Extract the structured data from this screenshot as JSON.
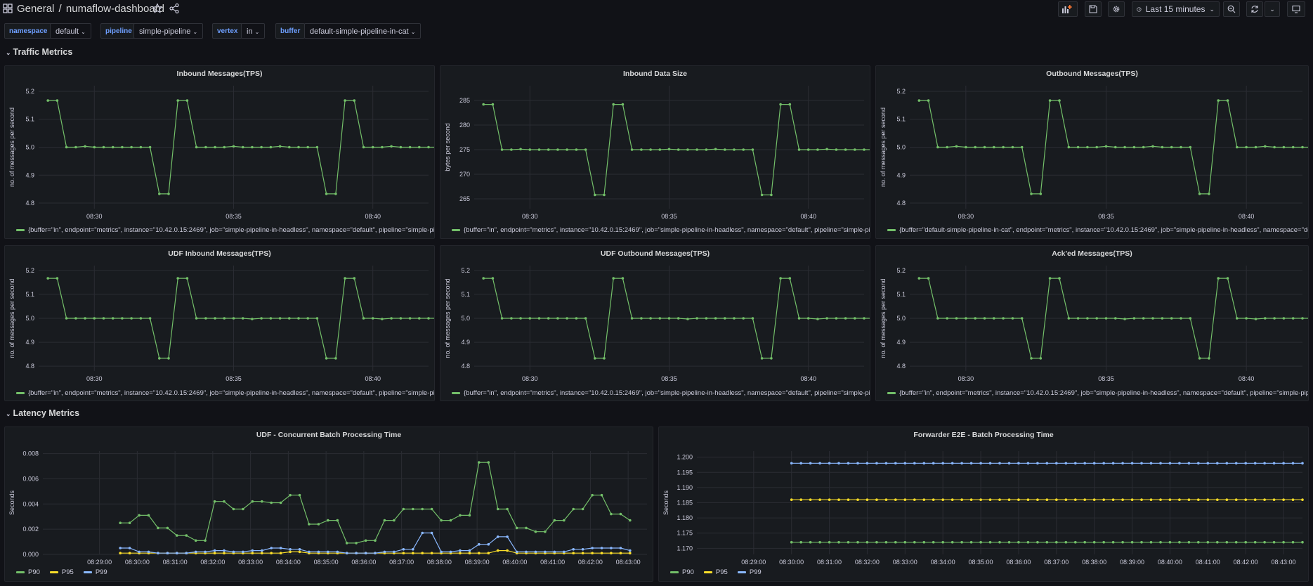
{
  "header": {
    "folder": "General",
    "separator": "/",
    "dashboard_title": "numaflow-dashboard",
    "time_range": "Last 15 minutes"
  },
  "variables": [
    {
      "label": "namespace",
      "value": "default"
    },
    {
      "label": "pipeline",
      "value": "simple-pipeline"
    },
    {
      "label": "vertex",
      "value": "in"
    },
    {
      "label": "buffer",
      "value": "default-simple-pipeline-in-cat"
    }
  ],
  "rows": {
    "traffic": "Traffic Metrics",
    "latency": "Latency Metrics"
  },
  "colors": {
    "green": "#73bf69",
    "yellow": "#fade2a",
    "blue": "#8ab8ff",
    "background": "#111217",
    "panel": "#181b1f",
    "variable_label": "#6e9fff"
  },
  "chart_data": [
    {
      "type": "line",
      "title": "Inbound Messages(TPS)",
      "ylabel": "no. of messages per second",
      "ylim": [
        4.78,
        5.22
      ],
      "yticks": [
        "4.8",
        "4.9",
        "5.0",
        "5.1",
        "5.2"
      ],
      "xlim": [
        0,
        42
      ],
      "xticks": [
        {
          "x": 6,
          "label": "08:30"
        },
        {
          "x": 21,
          "label": "08:35"
        },
        {
          "x": 36,
          "label": "08:40"
        }
      ],
      "series": [
        {
          "name": "{buffer=\"in\", endpoint=\"metrics\", instance=\"10.42.0.15:2469\", job=\"simple-pipeline-in-headless\", namespace=\"default\", pipeline=\"simple-pipeline\"}",
          "color": "green",
          "values": [
            5.167,
            5.167,
            5.0,
            5.0,
            5.003,
            5.0,
            5.0,
            5.0,
            5.0,
            5.0,
            5.0,
            5.0,
            4.833,
            4.833,
            5.167,
            5.167,
            5.0,
            5.0,
            5.0,
            5.0,
            5.003,
            5.0,
            5.0,
            5.0,
            5.0,
            5.003,
            5.0,
            5.0,
            5.0,
            5.0,
            4.833,
            4.833,
            5.167,
            5.167,
            5.0,
            5.0,
            5.0,
            5.003,
            5.0,
            5.0,
            5.0,
            5.0,
            5.0
          ]
        }
      ]
    },
    {
      "type": "line",
      "title": "Inbound Data Size",
      "ylabel": "bytes per second",
      "ylim": [
        263,
        288
      ],
      "yticks": [
        "265",
        "270",
        "275",
        "280",
        "285"
      ],
      "xlim": [
        0,
        42
      ],
      "xticks": [
        {
          "x": 6,
          "label": "08:30"
        },
        {
          "x": 21,
          "label": "08:35"
        },
        {
          "x": 36,
          "label": "08:40"
        }
      ],
      "series": [
        {
          "name": "{buffer=\"in\", endpoint=\"metrics\", instance=\"10.42.0.15:2469\", job=\"simple-pipeline-in-headless\", namespace=\"default\", pipeline=\"simple-pipeline\"}",
          "color": "green",
          "values": [
            284.2,
            284.2,
            275.0,
            275.0,
            275.1,
            275.0,
            275.0,
            275.0,
            275.0,
            275.0,
            275.0,
            275.0,
            265.8,
            265.8,
            284.2,
            284.2,
            275.0,
            275.0,
            275.0,
            275.0,
            275.1,
            275.0,
            275.0,
            275.0,
            275.0,
            275.1,
            275.0,
            275.0,
            275.0,
            275.0,
            265.8,
            265.8,
            284.2,
            284.2,
            275.0,
            275.0,
            275.0,
            275.1,
            275.0,
            275.0,
            275.0,
            275.0,
            275.0
          ]
        }
      ]
    },
    {
      "type": "line",
      "title": "Outbound Messages(TPS)",
      "ylabel": "no. of messages per second",
      "ylim": [
        4.78,
        5.22
      ],
      "yticks": [
        "4.8",
        "4.9",
        "5.0",
        "5.1",
        "5.2"
      ],
      "xlim": [
        0,
        42
      ],
      "xticks": [
        {
          "x": 6,
          "label": "08:30"
        },
        {
          "x": 21,
          "label": "08:35"
        },
        {
          "x": 36,
          "label": "08:40"
        }
      ],
      "series": [
        {
          "name": "{buffer=\"default-simple-pipeline-in-cat\", endpoint=\"metrics\", instance=\"10.42.0.15:2469\", job=\"simple-pipeline-in-headless\", namespace=\"default\", pipeline=\"simple-pipeline\"}",
          "color": "green",
          "values": [
            5.167,
            5.167,
            5.0,
            5.0,
            5.003,
            5.0,
            5.0,
            5.0,
            5.0,
            5.0,
            5.0,
            5.0,
            4.833,
            4.833,
            5.167,
            5.167,
            5.0,
            5.0,
            5.0,
            5.0,
            5.003,
            5.0,
            5.0,
            5.0,
            5.0,
            5.003,
            5.0,
            5.0,
            5.0,
            5.0,
            4.833,
            4.833,
            5.167,
            5.167,
            5.0,
            5.0,
            5.0,
            5.003,
            5.0,
            5.0,
            5.0,
            5.0,
            5.0
          ]
        }
      ]
    },
    {
      "type": "line",
      "title": "UDF Inbound Messages(TPS)",
      "ylabel": "no. of messages per second",
      "ylim": [
        4.78,
        5.22
      ],
      "yticks": [
        "4.8",
        "4.9",
        "5.0",
        "5.1",
        "5.2"
      ],
      "xlim": [
        0,
        42
      ],
      "xticks": [
        {
          "x": 6,
          "label": "08:30"
        },
        {
          "x": 21,
          "label": "08:35"
        },
        {
          "x": 36,
          "label": "08:40"
        }
      ],
      "series": [
        {
          "name": "{buffer=\"in\", endpoint=\"metrics\", instance=\"10.42.0.15:2469\", job=\"simple-pipeline-in-headless\", namespace=\"default\", pipeline=\"simple-pipeline\"}",
          "color": "green",
          "values": [
            5.167,
            5.167,
            5.0,
            5.0,
            5.0,
            5.0,
            5.0,
            5.0,
            5.0,
            5.0,
            5.0,
            5.0,
            4.833,
            4.833,
            5.167,
            5.167,
            5.0,
            5.0,
            5.0,
            5.0,
            5.0,
            5.0,
            4.997,
            5.0,
            5.0,
            5.0,
            5.0,
            5.0,
            5.0,
            5.0,
            4.833,
            4.833,
            5.167,
            5.167,
            5.0,
            5.0,
            4.997,
            5.0,
            5.0,
            5.0,
            5.0,
            5.0,
            5.0
          ]
        }
      ]
    },
    {
      "type": "line",
      "title": "UDF Outbound Messages(TPS)",
      "ylabel": "no. of messages per second",
      "ylim": [
        4.78,
        5.22
      ],
      "yticks": [
        "4.8",
        "4.9",
        "5.0",
        "5.1",
        "5.2"
      ],
      "xlim": [
        0,
        42
      ],
      "xticks": [
        {
          "x": 6,
          "label": "08:30"
        },
        {
          "x": 21,
          "label": "08:35"
        },
        {
          "x": 36,
          "label": "08:40"
        }
      ],
      "series": [
        {
          "name": "{buffer=\"in\", endpoint=\"metrics\", instance=\"10.42.0.15:2469\", job=\"simple-pipeline-in-headless\", namespace=\"default\", pipeline=\"simple-pipeline\"}",
          "color": "green",
          "values": [
            5.167,
            5.167,
            5.0,
            5.0,
            5.0,
            5.0,
            5.0,
            5.0,
            5.0,
            5.0,
            5.0,
            5.0,
            4.833,
            4.833,
            5.167,
            5.167,
            5.0,
            5.0,
            5.0,
            5.0,
            5.0,
            5.0,
            4.997,
            5.0,
            5.0,
            5.0,
            5.0,
            5.0,
            5.0,
            5.0,
            4.833,
            4.833,
            5.167,
            5.167,
            5.0,
            5.0,
            4.997,
            5.0,
            5.0,
            5.0,
            5.0,
            5.0,
            5.0
          ]
        }
      ]
    },
    {
      "type": "line",
      "title": "Ack'ed Messages(TPS)",
      "ylabel": "no. of messages per second",
      "ylim": [
        4.78,
        5.22
      ],
      "yticks": [
        "4.8",
        "4.9",
        "5.0",
        "5.1",
        "5.2"
      ],
      "xlim": [
        0,
        42
      ],
      "xticks": [
        {
          "x": 6,
          "label": "08:30"
        },
        {
          "x": 21,
          "label": "08:35"
        },
        {
          "x": 36,
          "label": "08:40"
        }
      ],
      "series": [
        {
          "name": "{buffer=\"in\", endpoint=\"metrics\", instance=\"10.42.0.15:2469\", job=\"simple-pipeline-in-headless\", namespace=\"default\", pipeline=\"simple-pipeline\"}",
          "color": "green",
          "values": [
            5.167,
            5.167,
            5.0,
            5.0,
            5.0,
            5.0,
            5.0,
            5.0,
            5.0,
            5.0,
            5.0,
            5.0,
            4.833,
            4.833,
            5.167,
            5.167,
            5.0,
            5.0,
            5.0,
            5.0,
            5.0,
            5.0,
            4.997,
            5.0,
            5.0,
            5.0,
            5.0,
            5.0,
            5.0,
            5.0,
            4.833,
            4.833,
            5.167,
            5.167,
            5.0,
            5.0,
            4.997,
            5.0,
            5.0,
            5.0,
            5.0,
            5.0,
            5.0
          ]
        }
      ]
    },
    {
      "type": "line",
      "title": "UDF - Concurrent Batch Processing Time",
      "ylabel": "Seconds",
      "ylim": [
        0,
        0.0082
      ],
      "yticks": [
        "0.000",
        "0.002",
        "0.004",
        "0.006",
        "0.008"
      ],
      "xlim": [
        -1.5,
        14.5
      ],
      "xticks": [
        {
          "x": 0,
          "label": "08:29:00"
        },
        {
          "x": 1,
          "label": "08:30:00"
        },
        {
          "x": 2,
          "label": "08:31:00"
        },
        {
          "x": 3,
          "label": "08:32:00"
        },
        {
          "x": 4,
          "label": "08:33:00"
        },
        {
          "x": 5,
          "label": "08:34:00"
        },
        {
          "x": 6,
          "label": "08:35:00"
        },
        {
          "x": 7,
          "label": "08:36:00"
        },
        {
          "x": 8,
          "label": "08:37:00"
        },
        {
          "x": 9,
          "label": "08:38:00"
        },
        {
          "x": 10,
          "label": "08:39:00"
        },
        {
          "x": 11,
          "label": "08:40:00"
        },
        {
          "x": 12,
          "label": "08:41:00"
        },
        {
          "x": 13,
          "label": "08:42:00"
        },
        {
          "x": 14,
          "label": "08:43:00"
        }
      ],
      "x_start": 0.55,
      "x_step": 0.25,
      "series": [
        {
          "name": "P90",
          "color": "green",
          "values": [
            0.0025,
            0.0025,
            0.0031,
            0.0031,
            0.0021,
            0.0021,
            0.0015,
            0.0015,
            0.0011,
            0.0011,
            0.0042,
            0.0042,
            0.0036,
            0.0036,
            0.0042,
            0.0042,
            0.0041,
            0.0041,
            0.0047,
            0.0047,
            0.0024,
            0.0024,
            0.0027,
            0.0027,
            0.0009,
            0.0009,
            0.0011,
            0.0011,
            0.0027,
            0.0027,
            0.0036,
            0.0036,
            0.0036,
            0.0036,
            0.0027,
            0.0027,
            0.0031,
            0.0031,
            0.0073,
            0.0073,
            0.0036,
            0.0036,
            0.0021,
            0.0021,
            0.0018,
            0.0018,
            0.0027,
            0.0027,
            0.0036,
            0.0036,
            0.0047,
            0.0047,
            0.0032,
            0.0032,
            0.0027
          ]
        },
        {
          "name": "P95",
          "color": "yellow",
          "values": [
            0.0001,
            0.0001,
            0.0001,
            0.0001,
            0.0001,
            0.0001,
            0.0001,
            0.0001,
            0.0001,
            0.0001,
            0.0001,
            0.0001,
            0.0001,
            0.0001,
            0.0001,
            0.0001,
            0.0001,
            0.0001,
            0.0002,
            0.0002,
            0.0001,
            0.0001,
            0.0001,
            0.0001,
            0.0001,
            0.0001,
            0.0001,
            0.0001,
            0.0001,
            0.0001,
            0.0001,
            0.0001,
            0.0001,
            0.0001,
            0.0001,
            0.0001,
            0.0001,
            0.0001,
            0.0001,
            0.0001,
            0.0003,
            0.0003,
            0.0001,
            0.0001,
            0.0001,
            0.0001,
            0.0001,
            0.0001,
            0.0001,
            0.0001,
            0.0001,
            0.0001,
            0.0001,
            0.0001,
            0.0001
          ]
        },
        {
          "name": "P99",
          "color": "blue",
          "values": [
            0.0005,
            0.0005,
            0.0002,
            0.0002,
            0.0001,
            0.0001,
            0.0001,
            0.0001,
            0.0002,
            0.0002,
            0.0003,
            0.0003,
            0.0002,
            0.0002,
            0.0003,
            0.0003,
            0.0005,
            0.0005,
            0.0004,
            0.0004,
            0.0002,
            0.0002,
            0.0002,
            0.0002,
            0.0001,
            0.0001,
            0.0001,
            0.0001,
            0.0002,
            0.0002,
            0.0004,
            0.0004,
            0.0017,
            0.0017,
            0.0002,
            0.0002,
            0.0003,
            0.0003,
            0.0008,
            0.0008,
            0.0014,
            0.0014,
            0.0002,
            0.0002,
            0.0002,
            0.0002,
            0.0002,
            0.0002,
            0.0004,
            0.0004,
            0.0005,
            0.0005,
            0.0005,
            0.0005,
            0.0003
          ]
        }
      ]
    },
    {
      "type": "line",
      "title": "Forwarder E2E - Batch Processing Time",
      "ylabel": "Seconds",
      "ylim": [
        1.168,
        1.202
      ],
      "yticks": [
        "1.170",
        "1.175",
        "1.180",
        "1.185",
        "1.190",
        "1.195",
        "1.200"
      ],
      "xlim": [
        -1.5,
        14.5
      ],
      "xticks": [
        {
          "x": 0,
          "label": "08:29:00"
        },
        {
          "x": 1,
          "label": "08:30:00"
        },
        {
          "x": 2,
          "label": "08:31:00"
        },
        {
          "x": 3,
          "label": "08:32:00"
        },
        {
          "x": 4,
          "label": "08:33:00"
        },
        {
          "x": 5,
          "label": "08:34:00"
        },
        {
          "x": 6,
          "label": "08:35:00"
        },
        {
          "x": 7,
          "label": "08:36:00"
        },
        {
          "x": 8,
          "label": "08:37:00"
        },
        {
          "x": 9,
          "label": "08:38:00"
        },
        {
          "x": 10,
          "label": "08:39:00"
        },
        {
          "x": 11,
          "label": "08:40:00"
        },
        {
          "x": 12,
          "label": "08:41:00"
        },
        {
          "x": 13,
          "label": "08:42:00"
        },
        {
          "x": 14,
          "label": "08:43:00"
        }
      ],
      "x_start": 1.0,
      "x_step": 0.25,
      "constant_series_points": 55,
      "series": [
        {
          "name": "P90",
          "color": "green",
          "constant": 1.172
        },
        {
          "name": "P95",
          "color": "yellow",
          "constant": 1.186
        },
        {
          "name": "P99",
          "color": "blue",
          "constant": 1.198
        }
      ]
    }
  ]
}
